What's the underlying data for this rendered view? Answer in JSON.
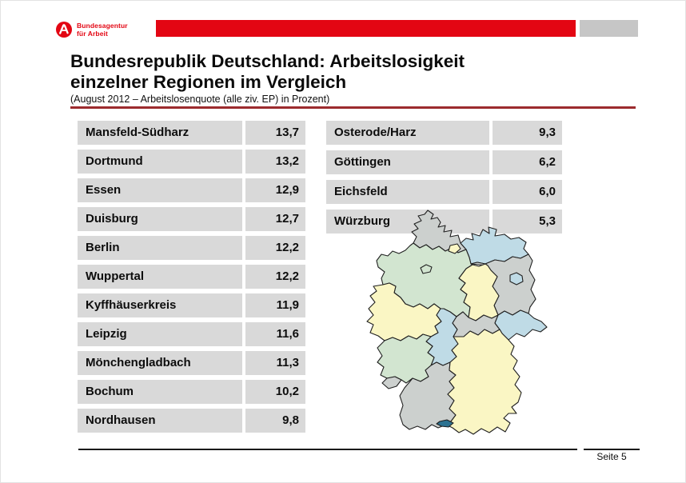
{
  "slide": {
    "logo": {
      "line1": "Bundesagentur",
      "line2": "für Arbeit"
    },
    "title_line1": "Bundesrepublik Deutschland: Arbeitslosigkeit",
    "title_line2": "einzelner Regionen im Vergleich",
    "subtitle": "(August 2012 – Arbeitslosenquote (alle ziv. EP) in Prozent)",
    "footer": {
      "page_label": "Seite 5"
    }
  },
  "colors": {
    "brand_red": "#e30613",
    "title_rule_red": "#9c2b2e",
    "header_gray": "#c6c6c6",
    "cell_gray": "#d9d9d9",
    "map_gray": "#ccd0ce",
    "map_green": "#d2e5d0",
    "map_yellow": "#faf6c4",
    "map_blue": "#bfdbe6",
    "lake_blue": "#2c7291",
    "map_border": "#202020"
  },
  "tables": {
    "left": {
      "rows": [
        {
          "region": "Mansfeld-Südharz",
          "value": "13,7"
        },
        {
          "region": "Dortmund",
          "value": "13,2"
        },
        {
          "region": "Essen",
          "value": "12,9"
        },
        {
          "region": "Duisburg",
          "value": "12,7"
        },
        {
          "region": "Berlin",
          "value": "12,2"
        },
        {
          "region": "Wuppertal",
          "value": "12,2"
        },
        {
          "region": "Kyffhäuserkreis",
          "value": "11,9"
        },
        {
          "region": "Leipzig",
          "value": "11,6"
        },
        {
          "region": "Mönchengladbach",
          "value": "11,3"
        },
        {
          "region": "Bochum",
          "value": "10,2"
        },
        {
          "region": "Nordhausen",
          "value": "9,8"
        }
      ]
    },
    "right": {
      "rows": [
        {
          "region": "Osterode/Harz",
          "value": "9,3"
        },
        {
          "region": "Göttingen",
          "value": "6,2"
        },
        {
          "region": "Eichsfeld",
          "value": "6,0"
        },
        {
          "region": "Würzburg",
          "value": "5,3"
        }
      ]
    }
  },
  "map": {
    "title": "Deutschlandkarte mit Bundesländern",
    "states": [
      {
        "id": "schleswig-holstein",
        "name": "Schleswig-Holstein",
        "fill": "gray"
      },
      {
        "id": "mecklenburg-vorpommern",
        "name": "Mecklenburg-Vorpommern",
        "fill": "blue"
      },
      {
        "id": "niedersachsen",
        "name": "Niedersachsen",
        "fill": "green"
      },
      {
        "id": "brandenburg",
        "name": "Brandenburg",
        "fill": "gray"
      },
      {
        "id": "sachsen-anhalt",
        "name": "Sachsen-Anhalt",
        "fill": "yellow"
      },
      {
        "id": "nordrhein-westfalen",
        "name": "Nordrhein-Westfalen",
        "fill": "yellow"
      },
      {
        "id": "hessen",
        "name": "Hessen",
        "fill": "blue"
      },
      {
        "id": "thueringen",
        "name": "Thüringen",
        "fill": "gray"
      },
      {
        "id": "sachsen",
        "name": "Sachsen",
        "fill": "blue"
      },
      {
        "id": "rheinland-pfalz",
        "name": "Rheinland-Pfalz",
        "fill": "green"
      },
      {
        "id": "saarland",
        "name": "Saarland",
        "fill": "gray"
      },
      {
        "id": "baden-wuerttemberg",
        "name": "Baden-Württemberg",
        "fill": "gray"
      },
      {
        "id": "bayern",
        "name": "Bayern",
        "fill": "yellow"
      },
      {
        "id": "hamburg",
        "name": "Hamburg",
        "fill": "yellow"
      },
      {
        "id": "bremen",
        "name": "Bremen",
        "fill": "green"
      },
      {
        "id": "berlin",
        "name": "Berlin",
        "fill": "blue"
      }
    ],
    "lake": {
      "id": "bodensee",
      "name": "Bodensee"
    }
  }
}
